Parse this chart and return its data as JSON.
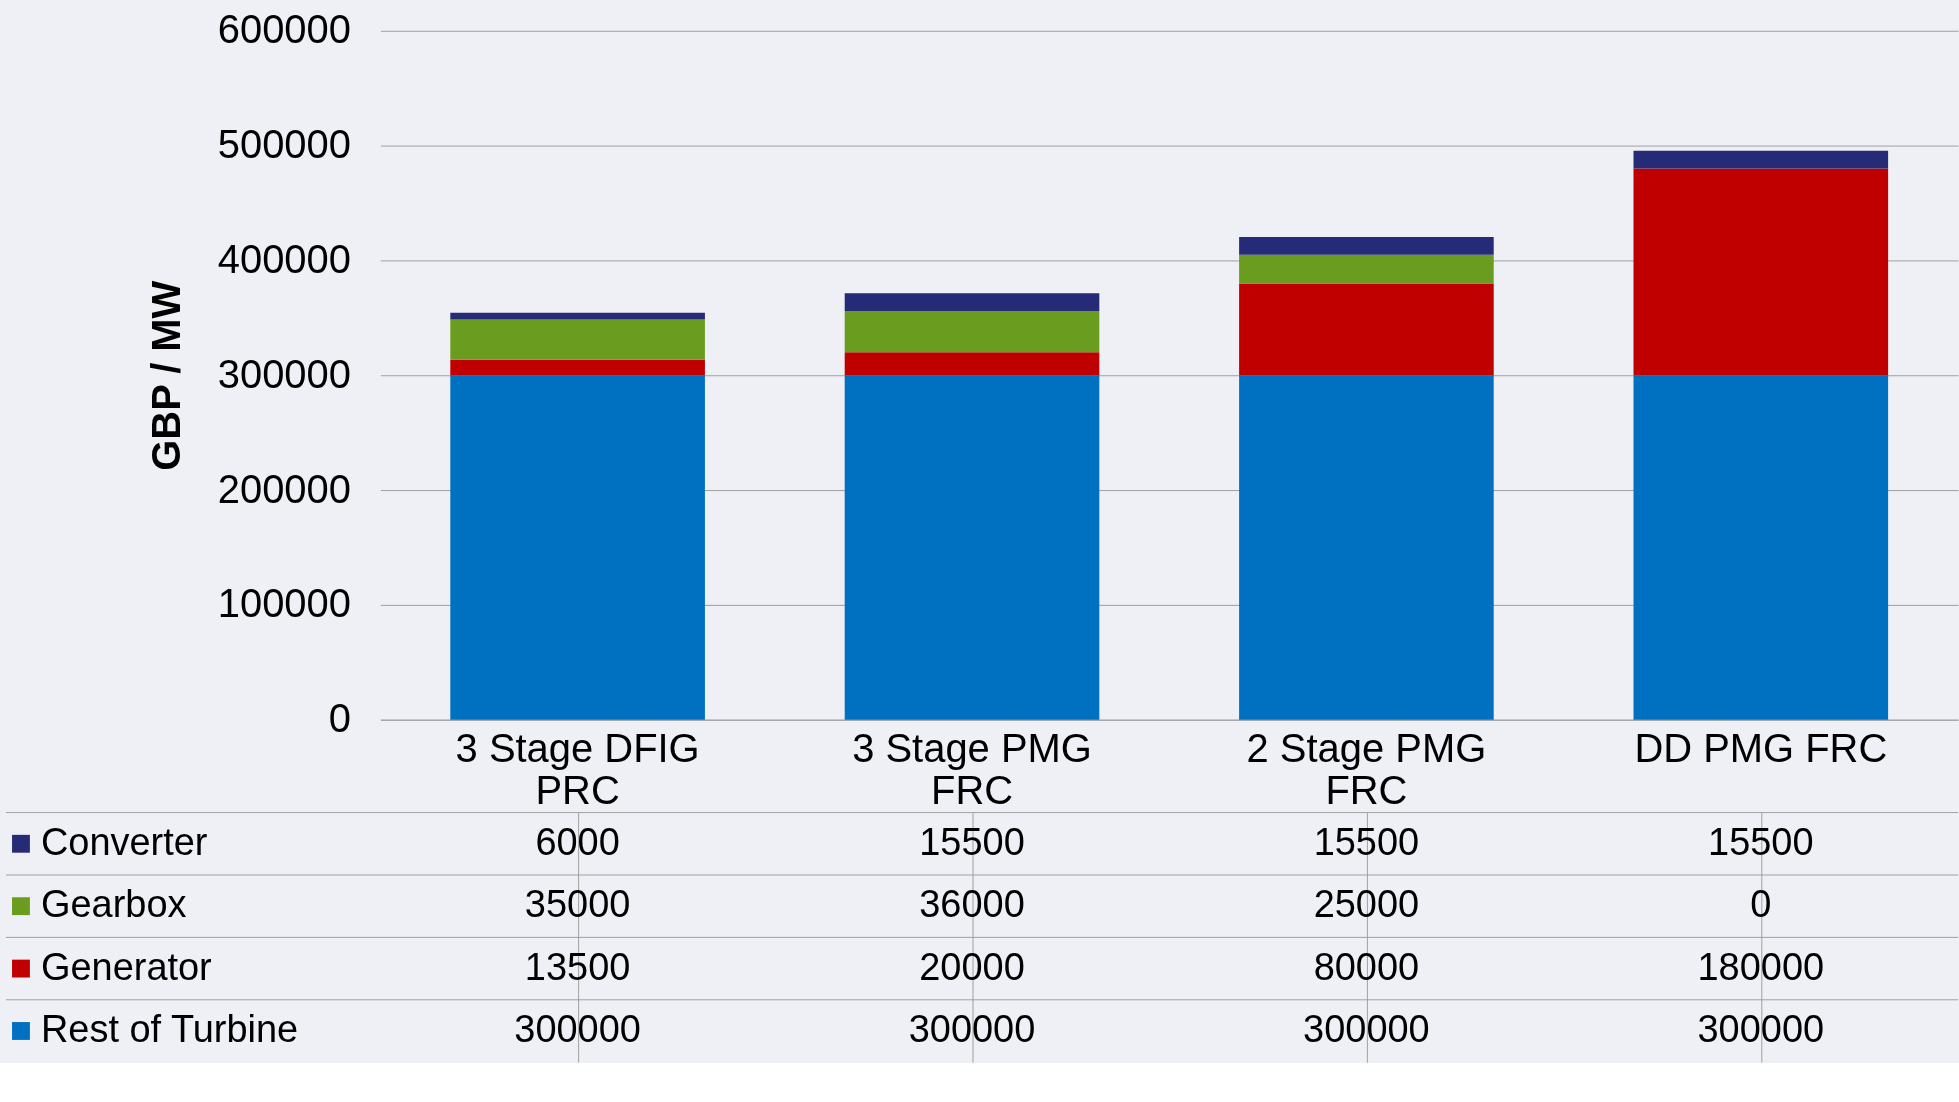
{
  "chart_data": {
    "type": "bar",
    "stacked": true,
    "ylabel": "GBP / MW",
    "categories": [
      "3 Stage DFIG PRC",
      "3 Stage PMG FRC",
      "2 Stage PMG FRC",
      "DD PMG FRC"
    ],
    "series": [
      {
        "name": "Rest of Turbine",
        "color": "#0070c0",
        "values": [
          300000,
          300000,
          300000,
          300000
        ]
      },
      {
        "name": "Generator",
        "color": "#c00000",
        "values": [
          13500,
          20000,
          80000,
          180000
        ]
      },
      {
        "name": "Gearbox",
        "color": "#6a9c1f",
        "values": [
          35000,
          36000,
          25000,
          0
        ]
      },
      {
        "name": "Converter",
        "color": "#262b78",
        "values": [
          6000,
          15500,
          15500,
          15500
        ]
      }
    ],
    "ylim": [
      0,
      600000
    ],
    "yticks": [
      0,
      100000,
      200000,
      300000,
      400000,
      500000,
      600000
    ],
    "grid": "y",
    "legend": "left",
    "data_labels": true
  }
}
